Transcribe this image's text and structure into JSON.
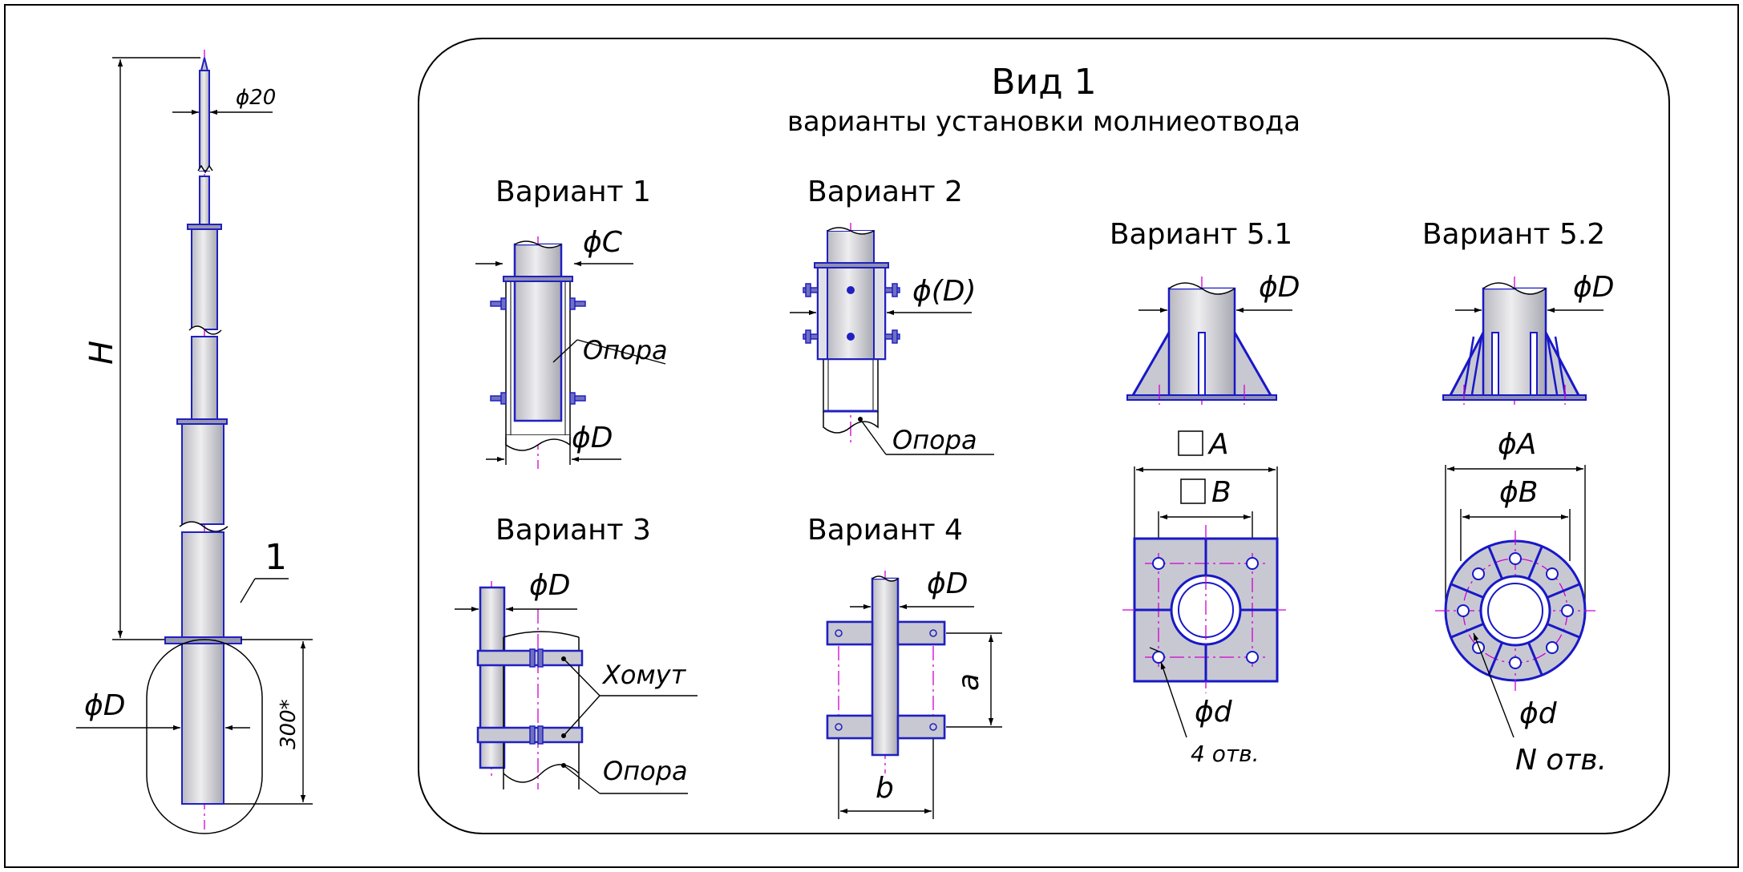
{
  "view": {
    "title": "Вид 1",
    "subtitle": "варианты установки молниеотвода"
  },
  "main_rod": {
    "tip_dia": "ϕ20",
    "height": "H",
    "diameter": "ϕD",
    "embed": "300*",
    "callout": "1"
  },
  "variant1": {
    "title": "Вариант 1",
    "dim_c": "ϕC",
    "support": "Опора",
    "dim_d": "ϕD"
  },
  "variant2": {
    "title": "Вариант 2",
    "dim_d": "ϕ(D)",
    "support": "Опора"
  },
  "variant3": {
    "title": "Вариант 3",
    "dim_d": "ϕD",
    "clamp": "Хомут",
    "support": "Опора"
  },
  "variant4": {
    "title": "Вариант 4",
    "dim_d": "ϕD",
    "dim_a": "a",
    "dim_b": "b"
  },
  "variant51": {
    "title": "Вариант 5.1",
    "dim_d": "ϕD",
    "sq_a": "A",
    "sq_b": "B",
    "hole": "ϕd",
    "holes": "4 отв."
  },
  "variant52": {
    "title": "Вариант 5.2",
    "dim_d": "ϕD",
    "dim_a": "ϕA",
    "dim_b": "ϕB",
    "hole": "ϕd",
    "holes": "N отв."
  }
}
